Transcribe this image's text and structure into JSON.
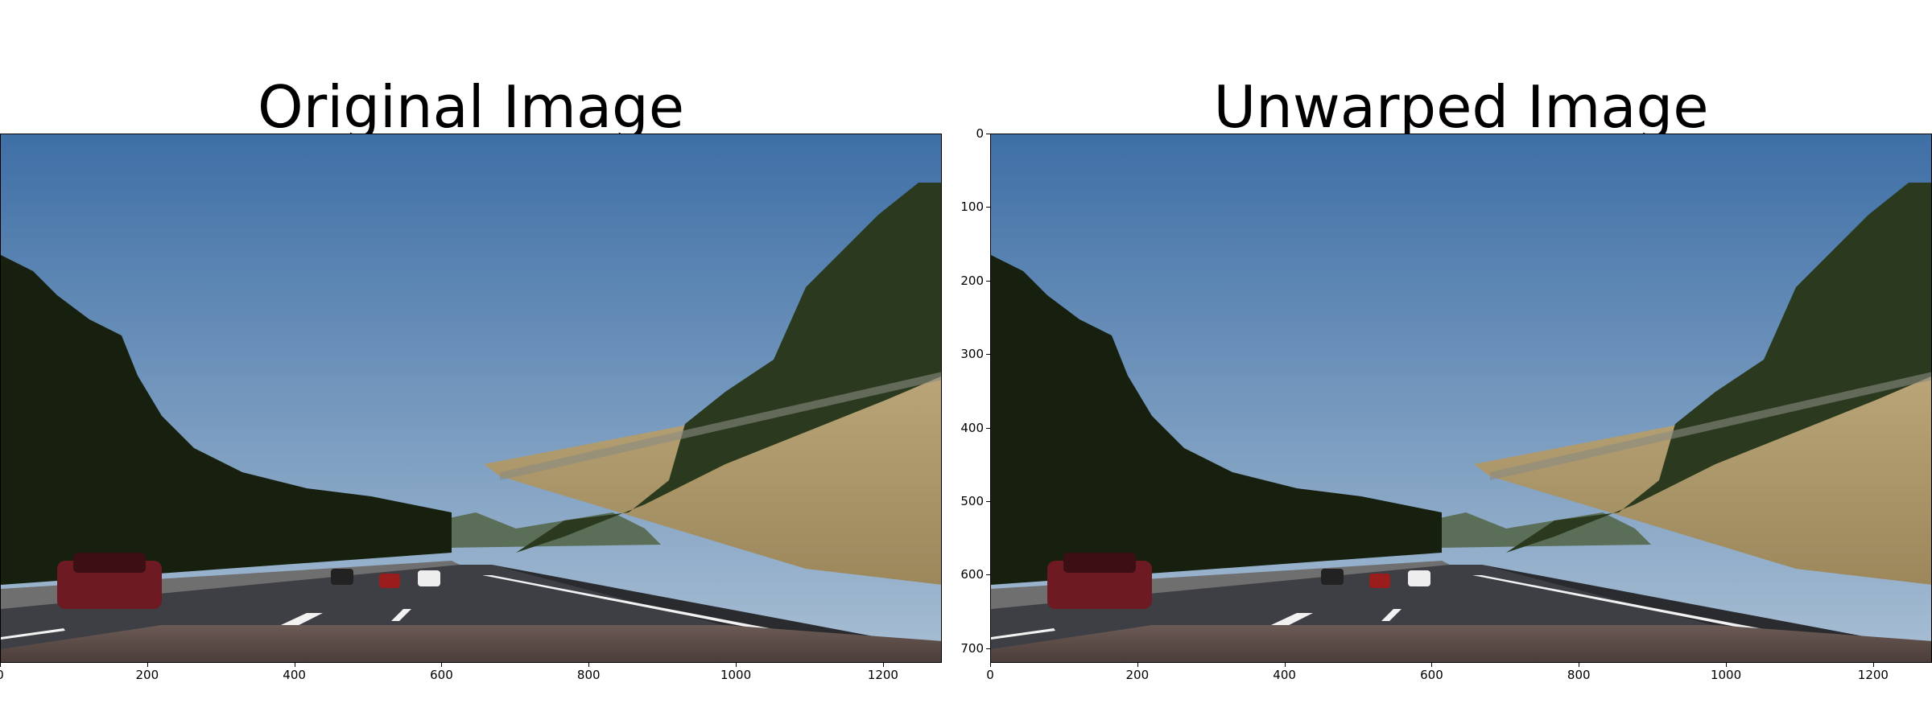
{
  "figure": {
    "panels": [
      {
        "title": "Original Image",
        "x_ticks": [
          "0",
          "200",
          "400",
          "600",
          "800",
          "1000",
          "1200"
        ],
        "y_ticks": []
      },
      {
        "title": "Unwarped Image",
        "x_ticks": [
          "0",
          "200",
          "400",
          "600",
          "800",
          "1000",
          "1200"
        ],
        "y_ticks": [
          "0",
          "100",
          "200",
          "300",
          "400",
          "500",
          "600",
          "700"
        ]
      }
    ],
    "image_extent": {
      "x_max": 1280,
      "y_max": 720
    },
    "scene": {
      "description_icon": "road-highway-photo",
      "sky_top": "#3e6fa6",
      "sky_bottom": "#a9bfd4",
      "road": "#3d3f44",
      "grass": "#a89463",
      "trees": "#2b3a1f",
      "car": "#6e1a22",
      "hood": "#5a4a45",
      "lane_line": "#f2f2f2"
    }
  }
}
